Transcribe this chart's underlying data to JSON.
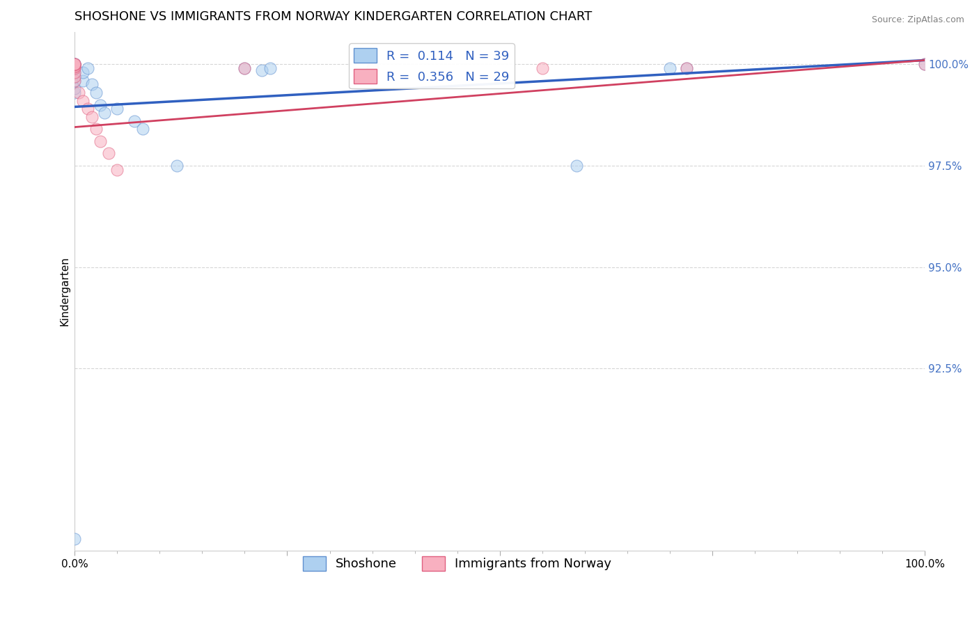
{
  "title": "SHOSHONE VS IMMIGRANTS FROM NORWAY KINDERGARTEN CORRELATION CHART",
  "source_text": "Source: ZipAtlas.com",
  "ylabel": "Kindergarten",
  "xlim": [
    0.0,
    1.0
  ],
  "ylim": [
    0.88,
    1.008
  ],
  "yticks": [
    0.925,
    0.95,
    0.975,
    1.0
  ],
  "ytick_labels": [
    "92.5%",
    "95.0%",
    "97.5%",
    "100.0%"
  ],
  "ytick_color": "#4472c4",
  "xticks": [
    0.0,
    0.25,
    0.5,
    0.75,
    1.0
  ],
  "xtick_labels": [
    "0.0%",
    "",
    "",
    "",
    "100.0%"
  ],
  "shoshone_x": [
    0.0,
    0.0,
    0.0,
    0.0,
    0.0,
    0.0,
    0.0,
    0.0,
    0.0,
    0.0,
    0.0,
    0.0,
    0.01,
    0.01,
    0.015,
    0.02,
    0.025,
    0.03,
    0.035,
    0.05,
    0.07,
    0.08,
    0.12,
    0.2,
    0.22,
    0.23,
    0.59,
    0.7,
    0.72,
    1.0
  ],
  "shoshone_y": [
    0.883,
    0.993,
    0.994,
    0.996,
    0.997,
    0.998,
    0.999,
    0.9995,
    1.0,
    1.0,
    1.0,
    1.0,
    0.996,
    0.998,
    0.999,
    0.995,
    0.993,
    0.99,
    0.988,
    0.989,
    0.986,
    0.984,
    0.975,
    0.999,
    0.9985,
    0.999,
    0.975,
    0.999,
    0.999,
    1.0
  ],
  "norway_x": [
    0.0,
    0.0,
    0.0,
    0.0,
    0.0,
    0.0,
    0.0,
    0.0,
    0.0,
    0.0,
    0.005,
    0.01,
    0.015,
    0.02,
    0.025,
    0.03,
    0.04,
    0.05,
    0.2,
    0.35,
    0.55,
    0.72,
    1.0
  ],
  "norway_y": [
    0.996,
    0.997,
    0.998,
    0.999,
    0.9993,
    0.9995,
    0.9998,
    1.0,
    1.0,
    1.0,
    0.993,
    0.991,
    0.989,
    0.987,
    0.984,
    0.981,
    0.978,
    0.974,
    0.999,
    0.999,
    0.999,
    0.999,
    1.0
  ],
  "shoshone_color": "#aed0f0",
  "norway_color": "#f8b0c0",
  "shoshone_edge_color": "#6090d0",
  "norway_edge_color": "#e06080",
  "shoshone_trend_color": "#3060c0",
  "norway_trend_color": "#d04060",
  "shoshone_trend_start_y": 0.9895,
  "shoshone_trend_end_y": 1.001,
  "norway_trend_start_y": 0.9845,
  "norway_trend_end_y": 1.001,
  "legend_line1": "R =  0.114   N = 39",
  "legend_line2": "R =  0.356   N = 29",
  "marker_size": 150,
  "marker_alpha": 0.55,
  "grid_color": "#bbbbbb",
  "grid_linestyle": "--",
  "grid_alpha": 0.6,
  "background_color": "#ffffff",
  "title_fontsize": 13,
  "axis_label_fontsize": 11,
  "tick_fontsize": 11,
  "legend_fontsize": 13
}
